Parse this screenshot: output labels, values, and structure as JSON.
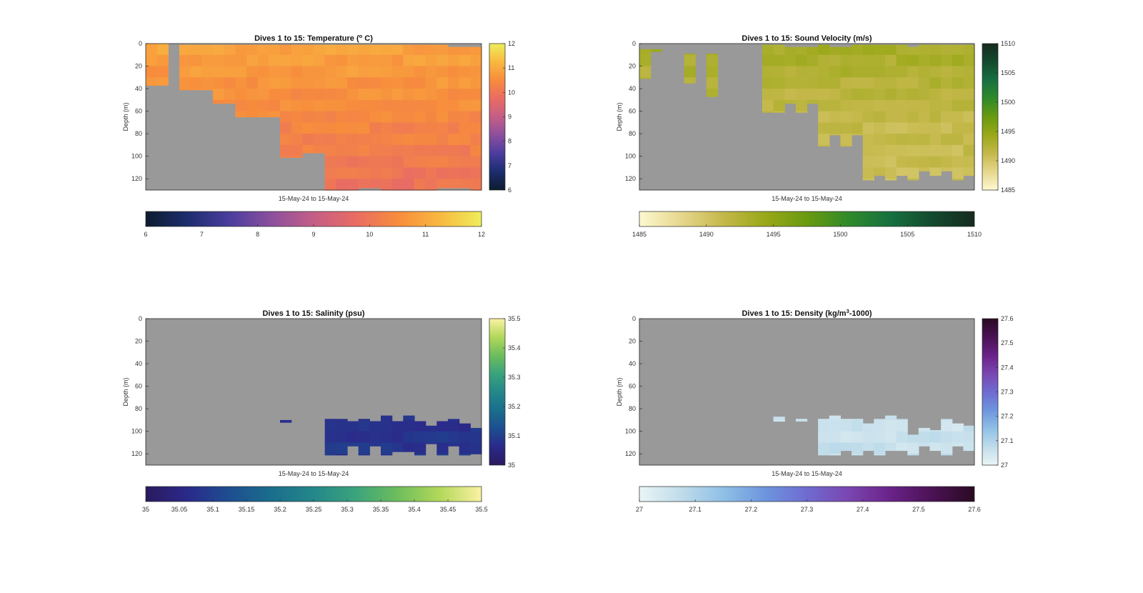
{
  "figure": {
    "background": "#ffffff",
    "no_data_color": "#999999"
  },
  "chart_data": [
    {
      "type": "heatmap",
      "id": "temperature",
      "title_main": "Dives 1 to 15: Temperature (",
      "title_sup": "o",
      "title_tail": " C)",
      "ylabel": "Depth (m)",
      "xlabel": "15-May-24 to 15-May-24",
      "ylim": [
        0,
        130
      ],
      "y_ticks": [
        0,
        20,
        40,
        60,
        80,
        100,
        120
      ],
      "clim": [
        6,
        12
      ],
      "colorbar_ticks": [
        "6",
        "7",
        "8",
        "9",
        "10",
        "11",
        "12"
      ],
      "colorbar_h_ticks": [
        "6",
        "7",
        "8",
        "9",
        "10",
        "11",
        "12"
      ],
      "colormap": [
        "#0d1c2e",
        "#1c2d6e",
        "#4b3d9e",
        "#8c4f9d",
        "#c45e86",
        "#e96c63",
        "#f78c3d",
        "#f9b840",
        "#eeee5a"
      ],
      "columns": 30,
      "profile_top": [
        0,
        0,
        -1,
        1,
        1,
        1,
        1,
        1,
        1,
        1,
        1,
        1,
        1,
        1,
        1,
        1,
        1,
        1,
        1,
        1,
        1,
        1,
        1,
        1,
        1,
        1,
        1,
        3,
        3,
        3
      ],
      "profile_bottom": [
        37,
        37,
        0,
        41,
        41,
        41,
        53,
        53,
        65,
        65,
        65,
        65,
        101,
        101,
        97,
        97,
        130,
        130,
        130,
        128,
        128,
        130,
        130,
        130,
        130,
        130,
        128,
        128,
        128,
        130
      ],
      "surface_value": 10.9,
      "mid_value": 10.4,
      "deep_value": 9.9
    },
    {
      "type": "heatmap",
      "id": "sound_velocity",
      "title_main": "Dives 1 to 15: Sound Velocity (m/s)",
      "ylabel": "Depth (m)",
      "xlabel": "15-May-24 to 15-May-24",
      "ylim": [
        0,
        130
      ],
      "y_ticks": [
        0,
        20,
        40,
        60,
        80,
        100,
        120
      ],
      "clim": [
        1485,
        1510
      ],
      "colorbar_ticks": [
        "1485",
        "1490",
        "1495",
        "1500",
        "1505",
        "1510"
      ],
      "colorbar_h_ticks": [
        "1485",
        "1490",
        "1495",
        "1500",
        "1505",
        "1510"
      ],
      "colormap": [
        "#fdf8d0",
        "#e6d78d",
        "#c4b84a",
        "#99a818",
        "#6a9a10",
        "#2f8a2a",
        "#177040",
        "#134a2e",
        "#162a1e"
      ],
      "columns": 30,
      "profile_top": [
        5,
        5,
        -1,
        -1,
        9,
        -1,
        9,
        -1,
        -1,
        -1,
        -1,
        1,
        1,
        3,
        3,
        3,
        1,
        3,
        3,
        1,
        1,
        1,
        1,
        1,
        3,
        1,
        1,
        1,
        1,
        1
      ],
      "profile_bottom": [
        31,
        7,
        0,
        0,
        35,
        0,
        47,
        0,
        0,
        0,
        0,
        61,
        61,
        53,
        61,
        53,
        91,
        81,
        91,
        81,
        121,
        117,
        121,
        117,
        121,
        113,
        117,
        113,
        121,
        117
      ],
      "surface_value": 1493.6,
      "mid_value": 1491.2,
      "deep_value": 1490.6
    },
    {
      "type": "heatmap",
      "id": "salinity",
      "title_main": "Dives 1 to 15: Salinity (psu)",
      "ylabel": "Depth (m)",
      "xlabel": "15-May-24 to 15-May-24",
      "ylim": [
        0,
        130
      ],
      "y_ticks": [
        0,
        20,
        40,
        60,
        80,
        100,
        120
      ],
      "clim": [
        35,
        35.5
      ],
      "colorbar_ticks": [
        "35",
        "35.1",
        "35.2",
        "35.3",
        "35.4",
        "35.5"
      ],
      "colorbar_h_ticks": [
        "35",
        "35.05",
        "35.1",
        "35.15",
        "35.2",
        "35.25",
        "35.3",
        "35.35",
        "35.4",
        "35.45",
        "35.5"
      ],
      "colormap": [
        "#2a1a5e",
        "#2a2a8a",
        "#1d4e90",
        "#1a6e8c",
        "#24878a",
        "#3ba37c",
        "#6dbd5c",
        "#b2d85a",
        "#fbf2a2"
      ],
      "columns": 30,
      "profile_top": [
        -1,
        -1,
        -1,
        -1,
        -1,
        -1,
        -1,
        -1,
        -1,
        -1,
        -1,
        -1,
        90,
        -1,
        -1,
        -1,
        89,
        89,
        91,
        89,
        91,
        86,
        91,
        86,
        91,
        95,
        91,
        89,
        93,
        97
      ],
      "profile_bottom": [
        0,
        0,
        0,
        0,
        0,
        0,
        0,
        0,
        0,
        0,
        0,
        0,
        92,
        0,
        0,
        0,
        121,
        121,
        113,
        121,
        113,
        121,
        118,
        118,
        121,
        111,
        121,
        113,
        121,
        120
      ],
      "surface_value": 35.03,
      "mid_value": 35.06,
      "deep_value": 35.09
    },
    {
      "type": "heatmap",
      "id": "density",
      "title_main": "Dives 1 to 15: Density (kg/m",
      "title_sup": "3",
      "title_tail": "-1000)",
      "ylabel": "Depth (m)",
      "xlabel": "15-May-24 to 15-May-24",
      "ylim": [
        0,
        130
      ],
      "y_ticks": [
        0,
        20,
        40,
        60,
        80,
        100,
        120
      ],
      "clim": [
        27,
        27.6
      ],
      "colorbar_ticks": [
        "27",
        "27.1",
        "27.2",
        "27.3",
        "27.4",
        "27.5",
        "27.6"
      ],
      "colorbar_h_ticks": [
        "27",
        "27.1",
        "27.2",
        "27.3",
        "27.4",
        "27.5",
        "27.6"
      ],
      "colormap": [
        "#eaf5f5",
        "#c0dcea",
        "#8fc0e6",
        "#6d95de",
        "#6f6bd0",
        "#7a46b0",
        "#6a2288",
        "#4a1254",
        "#2a0a22"
      ],
      "columns": 30,
      "profile_top": [
        -1,
        -1,
        -1,
        -1,
        -1,
        -1,
        -1,
        -1,
        -1,
        -1,
        -1,
        -1,
        87,
        -1,
        89,
        -1,
        89,
        86,
        89,
        89,
        93,
        89,
        86,
        89,
        103,
        97,
        99,
        89,
        93,
        95
      ],
      "profile_bottom": [
        0,
        0,
        0,
        0,
        0,
        0,
        0,
        0,
        0,
        0,
        0,
        0,
        91,
        0,
        91,
        0,
        121,
        121,
        117,
        121,
        117,
        121,
        117,
        117,
        121,
        113,
        117,
        121,
        113,
        117
      ],
      "surface_value": 27.02,
      "mid_value": 27.04,
      "deep_value": 27.07
    }
  ]
}
